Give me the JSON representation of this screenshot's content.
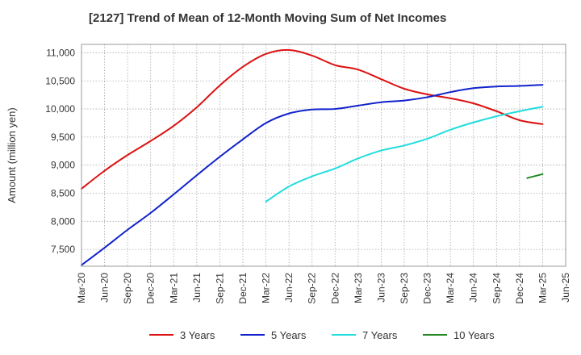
{
  "title": "[2127]  Trend of Mean of 12-Month Moving Sum of Net Incomes",
  "chart_data": {
    "type": "line",
    "title": "[2127]  Trend of Mean of 12-Month Moving Sum of Net Incomes",
    "ylabel": "Amount (million yen)",
    "xlabel": "",
    "ylim": [
      7200,
      11150
    ],
    "xlim": [
      "2020-03",
      "2025-06"
    ],
    "grid": true,
    "legend_position": "bottom",
    "y_ticks": [
      7500,
      8000,
      8500,
      9000,
      9500,
      10000,
      10500,
      11000
    ],
    "y_tick_labels": [
      "7,500",
      "8,000",
      "8,500",
      "9,000",
      "9,500",
      "10,000",
      "10,500",
      "11,000"
    ],
    "x_ticks": [
      "2020-03",
      "2020-06",
      "2020-09",
      "2020-12",
      "2021-03",
      "2021-06",
      "2021-09",
      "2021-12",
      "2022-03",
      "2022-06",
      "2022-09",
      "2022-12",
      "2023-03",
      "2023-06",
      "2023-09",
      "2023-12",
      "2024-03",
      "2024-06",
      "2024-09",
      "2024-12",
      "2025-03",
      "2025-06"
    ],
    "x_tick_labels": [
      "Mar-20",
      "Jun-20",
      "Sep-20",
      "Dec-20",
      "Mar-21",
      "Jun-21",
      "Sep-21",
      "Dec-21",
      "Mar-22",
      "Jun-22",
      "Sep-22",
      "Dec-22",
      "Mar-23",
      "Jun-23",
      "Sep-23",
      "Dec-23",
      "Mar-24",
      "Jun-24",
      "Sep-24",
      "Dec-24",
      "Mar-25",
      "Jun-25"
    ],
    "series": [
      {
        "name": "3 Years",
        "color": "#dd1111",
        "x": [
          "2020-03",
          "2020-06",
          "2020-09",
          "2020-12",
          "2021-03",
          "2021-06",
          "2021-09",
          "2021-12",
          "2022-03",
          "2022-06",
          "2022-09",
          "2022-12",
          "2023-03",
          "2023-06",
          "2023-09",
          "2023-12",
          "2024-03",
          "2024-06",
          "2024-09",
          "2024-12",
          "2025-03"
        ],
        "y": [
          8580,
          8900,
          9180,
          9430,
          9700,
          10030,
          10420,
          10750,
          10980,
          11050,
          10950,
          10780,
          10700,
          10530,
          10360,
          10260,
          10190,
          10100,
          9960,
          9800,
          9730
        ]
      },
      {
        "name": "5 Years",
        "color": "#1122cc",
        "x": [
          "2020-03",
          "2020-06",
          "2020-09",
          "2020-12",
          "2021-03",
          "2021-06",
          "2021-09",
          "2021-12",
          "2022-03",
          "2022-06",
          "2022-09",
          "2022-12",
          "2023-03",
          "2023-06",
          "2023-09",
          "2023-12",
          "2024-03",
          "2024-06",
          "2024-09",
          "2024-12",
          "2025-03"
        ],
        "y": [
          7220,
          7530,
          7850,
          8150,
          8480,
          8820,
          9150,
          9460,
          9750,
          9920,
          9990,
          10000,
          10060,
          10120,
          10150,
          10210,
          10300,
          10370,
          10400,
          10410,
          10430
        ]
      },
      {
        "name": "7 Years",
        "color": "#22dddd",
        "x": [
          "2022-03",
          "2022-06",
          "2022-09",
          "2022-12",
          "2023-03",
          "2023-06",
          "2023-09",
          "2023-12",
          "2024-03",
          "2024-06",
          "2024-09",
          "2024-12",
          "2025-03"
        ],
        "y": [
          8350,
          8620,
          8800,
          8940,
          9120,
          9260,
          9350,
          9470,
          9630,
          9760,
          9870,
          9960,
          10040
        ]
      },
      {
        "name": "10 Years",
        "color": "#228822",
        "x": [
          "2025-01",
          "2025-03"
        ],
        "y": [
          8770,
          8840
        ]
      }
    ]
  }
}
